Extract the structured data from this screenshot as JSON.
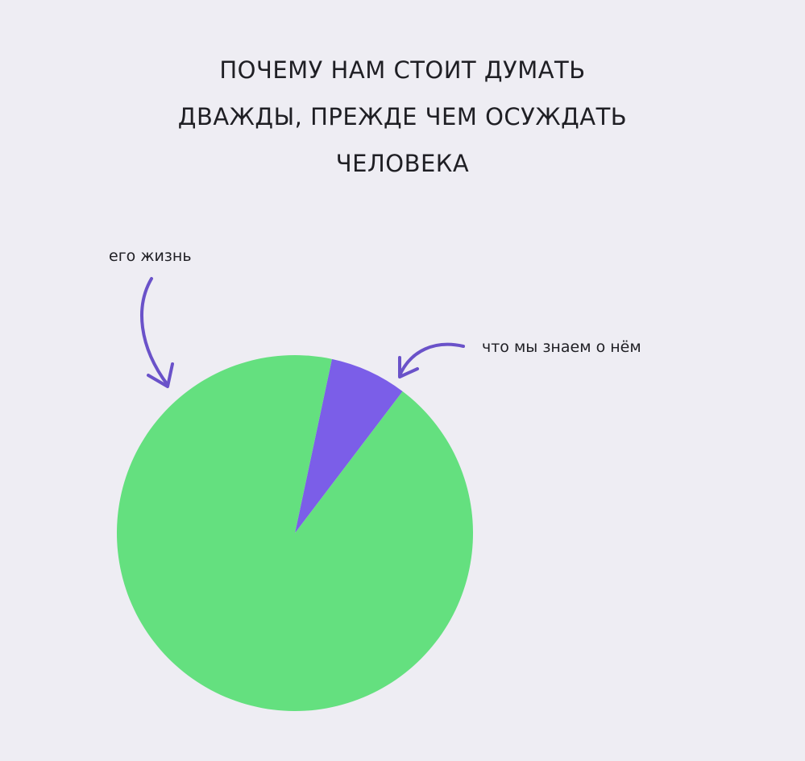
{
  "title_lines": [
    "ПОЧЕМУ НАМ СТОИТ ДУМАТЬ",
    "ДВАЖДЫ, ПРЕЖДЕ ЧЕМ ОСУЖДАТЬ",
    "ЧЕЛОВЕКА"
  ],
  "chart_data": {
    "type": "pie",
    "title": "ПОЧЕМУ НАМ СТОИТ ДУМАТЬ ДВАЖДЫ, ПРЕЖДЕ ЧЕМ ОСУЖДАТЬ ЧЕЛОВЕКА",
    "slices": [
      {
        "label": "что мы знаем о нём",
        "value": 7,
        "color": "#7b5ee8"
      },
      {
        "label": "его жизнь",
        "value": 93,
        "color": "#64e07f"
      }
    ],
    "legend": "none",
    "annotations": [
      "его жизнь",
      "что мы знаем о нём"
    ]
  },
  "colors": {
    "background": "#eeedf3",
    "arrow": "#6a52c9"
  }
}
